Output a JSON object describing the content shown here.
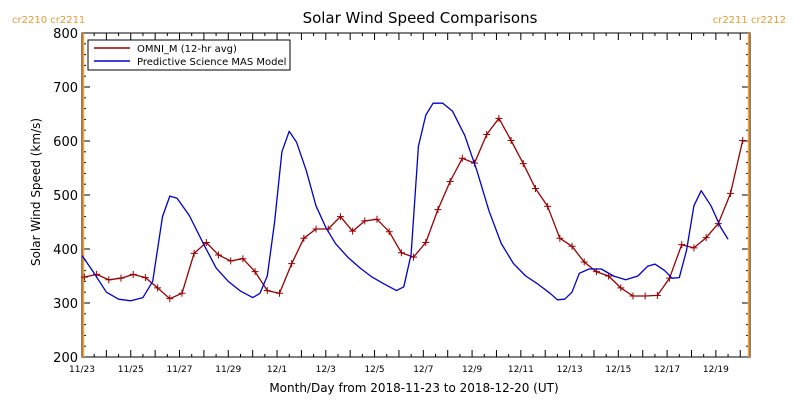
{
  "chart_data": {
    "type": "line",
    "title": "Solar Wind Speed Comparisons",
    "xlabel": "Month/Day from 2018-11-23 to 2018-12-20 (UT)",
    "ylabel": "Solar Wind Speed (km/s)",
    "ylim": [
      200,
      800
    ],
    "xlim": [
      0,
      27.4
    ],
    "x_unit": "days since 2018-11-23",
    "yticks": [
      200,
      300,
      400,
      500,
      600,
      700,
      800
    ],
    "xticks": [
      {
        "x": 0,
        "label": "11/23"
      },
      {
        "x": 2,
        "label": "11/25"
      },
      {
        "x": 4,
        "label": "11/27"
      },
      {
        "x": 6,
        "label": "11/29"
      },
      {
        "x": 8,
        "label": "12/1"
      },
      {
        "x": 10,
        "label": "12/3"
      },
      {
        "x": 12,
        "label": "12/5"
      },
      {
        "x": 14,
        "label": "12/7"
      },
      {
        "x": 16,
        "label": "12/9"
      },
      {
        "x": 18,
        "label": "12/11"
      },
      {
        "x": 20,
        "label": "12/13"
      },
      {
        "x": 22,
        "label": "12/15"
      },
      {
        "x": 24,
        "label": "12/17"
      },
      {
        "x": 26,
        "label": "12/19"
      }
    ],
    "rotation_markers": [
      {
        "x": 0.05,
        "left_label": "cr2210",
        "right_label": "cr2211",
        "side": "left"
      },
      {
        "x": 27.35,
        "left_label": "cr2211",
        "right_label": "cr2212",
        "side": "right"
      }
    ],
    "legend": {
      "placement": "top-left"
    },
    "series": [
      {
        "name": "OMNI_M (12-hr avg)",
        "color": "#990000",
        "marker": "plus",
        "points": [
          [
            0.1,
            348
          ],
          [
            0.6,
            353
          ],
          [
            1.1,
            343
          ],
          [
            1.6,
            346
          ],
          [
            2.1,
            353
          ],
          [
            2.6,
            347
          ],
          [
            3.1,
            328
          ],
          [
            3.6,
            308
          ],
          [
            4.1,
            318
          ],
          [
            4.6,
            392
          ],
          [
            5.1,
            412
          ],
          [
            5.6,
            389
          ],
          [
            6.1,
            378
          ],
          [
            6.6,
            382
          ],
          [
            7.1,
            358
          ],
          [
            7.6,
            323
          ],
          [
            8.1,
            318
          ],
          [
            8.6,
            373
          ],
          [
            9.1,
            420
          ],
          [
            9.6,
            437
          ],
          [
            10.1,
            437
          ],
          [
            10.6,
            460
          ],
          [
            11.1,
            433
          ],
          [
            11.6,
            452
          ],
          [
            12.1,
            455
          ],
          [
            12.6,
            432
          ],
          [
            13.1,
            393
          ],
          [
            13.6,
            385
          ],
          [
            14.1,
            412
          ],
          [
            14.6,
            473
          ],
          [
            15.1,
            525
          ],
          [
            15.6,
            568
          ],
          [
            16.1,
            559
          ],
          [
            16.6,
            612
          ],
          [
            17.1,
            642
          ],
          [
            17.6,
            601
          ],
          [
            18.1,
            558
          ],
          [
            18.6,
            512
          ],
          [
            19.1,
            479
          ],
          [
            19.6,
            420
          ],
          [
            20.1,
            405
          ],
          [
            20.6,
            376
          ],
          [
            21.1,
            358
          ],
          [
            21.6,
            350
          ],
          [
            22.1,
            328
          ],
          [
            22.6,
            313
          ],
          [
            23.1,
            313
          ],
          [
            23.6,
            314
          ],
          [
            24.1,
            346
          ],
          [
            24.6,
            408
          ],
          [
            25.1,
            402
          ],
          [
            25.6,
            421
          ],
          [
            26.1,
            447
          ],
          [
            26.6,
            503
          ],
          [
            27.1,
            601
          ]
        ]
      },
      {
        "name": "Predictive Science MAS Model",
        "color": "#0000cc",
        "marker": "none",
        "points": [
          [
            0.0,
            388
          ],
          [
            0.5,
            355
          ],
          [
            1.0,
            320
          ],
          [
            1.5,
            307
          ],
          [
            2.0,
            304
          ],
          [
            2.5,
            310
          ],
          [
            2.9,
            340
          ],
          [
            3.3,
            460
          ],
          [
            3.6,
            498
          ],
          [
            3.9,
            494
          ],
          [
            4.4,
            462
          ],
          [
            5.0,
            408
          ],
          [
            5.5,
            365
          ],
          [
            6.0,
            340
          ],
          [
            6.5,
            322
          ],
          [
            7.0,
            310
          ],
          [
            7.3,
            318
          ],
          [
            7.6,
            350
          ],
          [
            7.9,
            450
          ],
          [
            8.2,
            580
          ],
          [
            8.5,
            618
          ],
          [
            8.8,
            598
          ],
          [
            9.2,
            545
          ],
          [
            9.6,
            480
          ],
          [
            10.0,
            440
          ],
          [
            10.4,
            410
          ],
          [
            10.9,
            385
          ],
          [
            11.4,
            365
          ],
          [
            11.9,
            348
          ],
          [
            12.4,
            335
          ],
          [
            12.9,
            323
          ],
          [
            13.2,
            330
          ],
          [
            13.5,
            390
          ],
          [
            13.8,
            590
          ],
          [
            14.1,
            648
          ],
          [
            14.4,
            670
          ],
          [
            14.8,
            670
          ],
          [
            15.2,
            655
          ],
          [
            15.7,
            610
          ],
          [
            16.2,
            545
          ],
          [
            16.7,
            470
          ],
          [
            17.2,
            410
          ],
          [
            17.7,
            373
          ],
          [
            18.2,
            350
          ],
          [
            18.7,
            335
          ],
          [
            19.2,
            318
          ],
          [
            19.5,
            306
          ],
          [
            19.8,
            307
          ],
          [
            20.1,
            320
          ],
          [
            20.4,
            355
          ],
          [
            20.8,
            363
          ],
          [
            21.3,
            363
          ],
          [
            21.8,
            350
          ],
          [
            22.3,
            343
          ],
          [
            22.8,
            350
          ],
          [
            23.2,
            368
          ],
          [
            23.5,
            372
          ],
          [
            23.9,
            360
          ],
          [
            24.2,
            346
          ],
          [
            24.5,
            347
          ],
          [
            24.8,
            398
          ],
          [
            25.1,
            480
          ],
          [
            25.4,
            508
          ],
          [
            25.8,
            480
          ],
          [
            26.2,
            440
          ],
          [
            26.5,
            418
          ]
        ]
      }
    ]
  },
  "colors": {
    "axis": "#000000",
    "title": "#000000",
    "rotation_marker": "#f5a033",
    "rotation_label": "#e69a30"
  }
}
